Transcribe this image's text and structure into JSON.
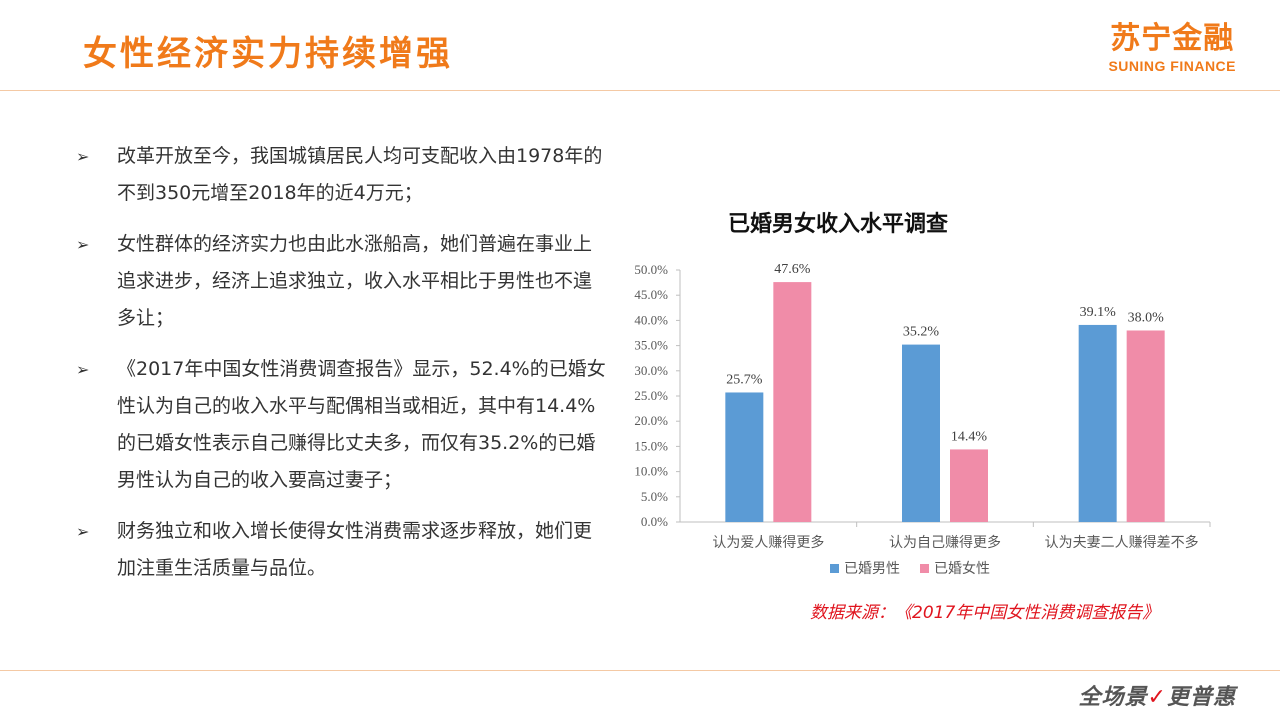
{
  "header": {
    "title": "女性经济实力持续增强",
    "logo_cn": "苏宁金融",
    "logo_en": "SUNING FINANCE"
  },
  "bullets": [
    {
      "icon": "arrow-bullet-icon",
      "text": "改革开放至今，我国城镇居民人均可支配收入由1978年的不到350元增至2018年的近4万元；"
    },
    {
      "icon": "arrow-bullet-icon",
      "text": "女性群体的经济实力也由此水涨船高，她们普遍在事业上追求进步，经济上追求独立，收入水平相比于男性也不遑多让；"
    },
    {
      "icon": "arrow-bullet-icon",
      "text": "《2017年中国女性消费调查报告》显示，52.4%的已婚女性认为自己的收入水平与配偶相当或相近，其中有14.4%的已婚女性表示自己赚得比丈夫多，而仅有35.2%的已婚男性认为自己的收入要高过妻子；"
    },
    {
      "icon": "arrow-bullet-icon",
      "text": "财务独立和收入增长使得女性消费需求逐步释放，她们更加注重生活质量与品位。"
    }
  ],
  "chart_data": {
    "type": "bar",
    "title": "已婚男女收入水平调查",
    "categories": [
      "认为爱人赚得更多",
      "认为自己赚得更多",
      "认为夫妻二人赚得差不多"
    ],
    "series": [
      {
        "name": "已婚男性",
        "color": "#5b9bd5",
        "values": [
          25.7,
          35.2,
          39.1
        ],
        "labels": [
          "25.7%",
          "35.2%",
          "39.1%"
        ]
      },
      {
        "name": "已婚女性",
        "color": "#f08ca8",
        "values": [
          47.6,
          14.4,
          38.0
        ],
        "labels": [
          "47.6%",
          "14.4%",
          "38.0%"
        ]
      }
    ],
    "ylim": [
      0,
      50
    ],
    "yticks": [
      "0.0%",
      "5.0%",
      "10.0%",
      "15.0%",
      "20.0%",
      "25.0%",
      "30.0%",
      "35.0%",
      "40.0%",
      "45.0%",
      "50.0%"
    ],
    "grid": false,
    "legend": "bottom"
  },
  "source": "数据来源：《2017年中国女性消费调查报告》",
  "footer": {
    "slogan_a": "全场景",
    "slogan_check": "✓",
    "slogan_b": "更普惠"
  }
}
